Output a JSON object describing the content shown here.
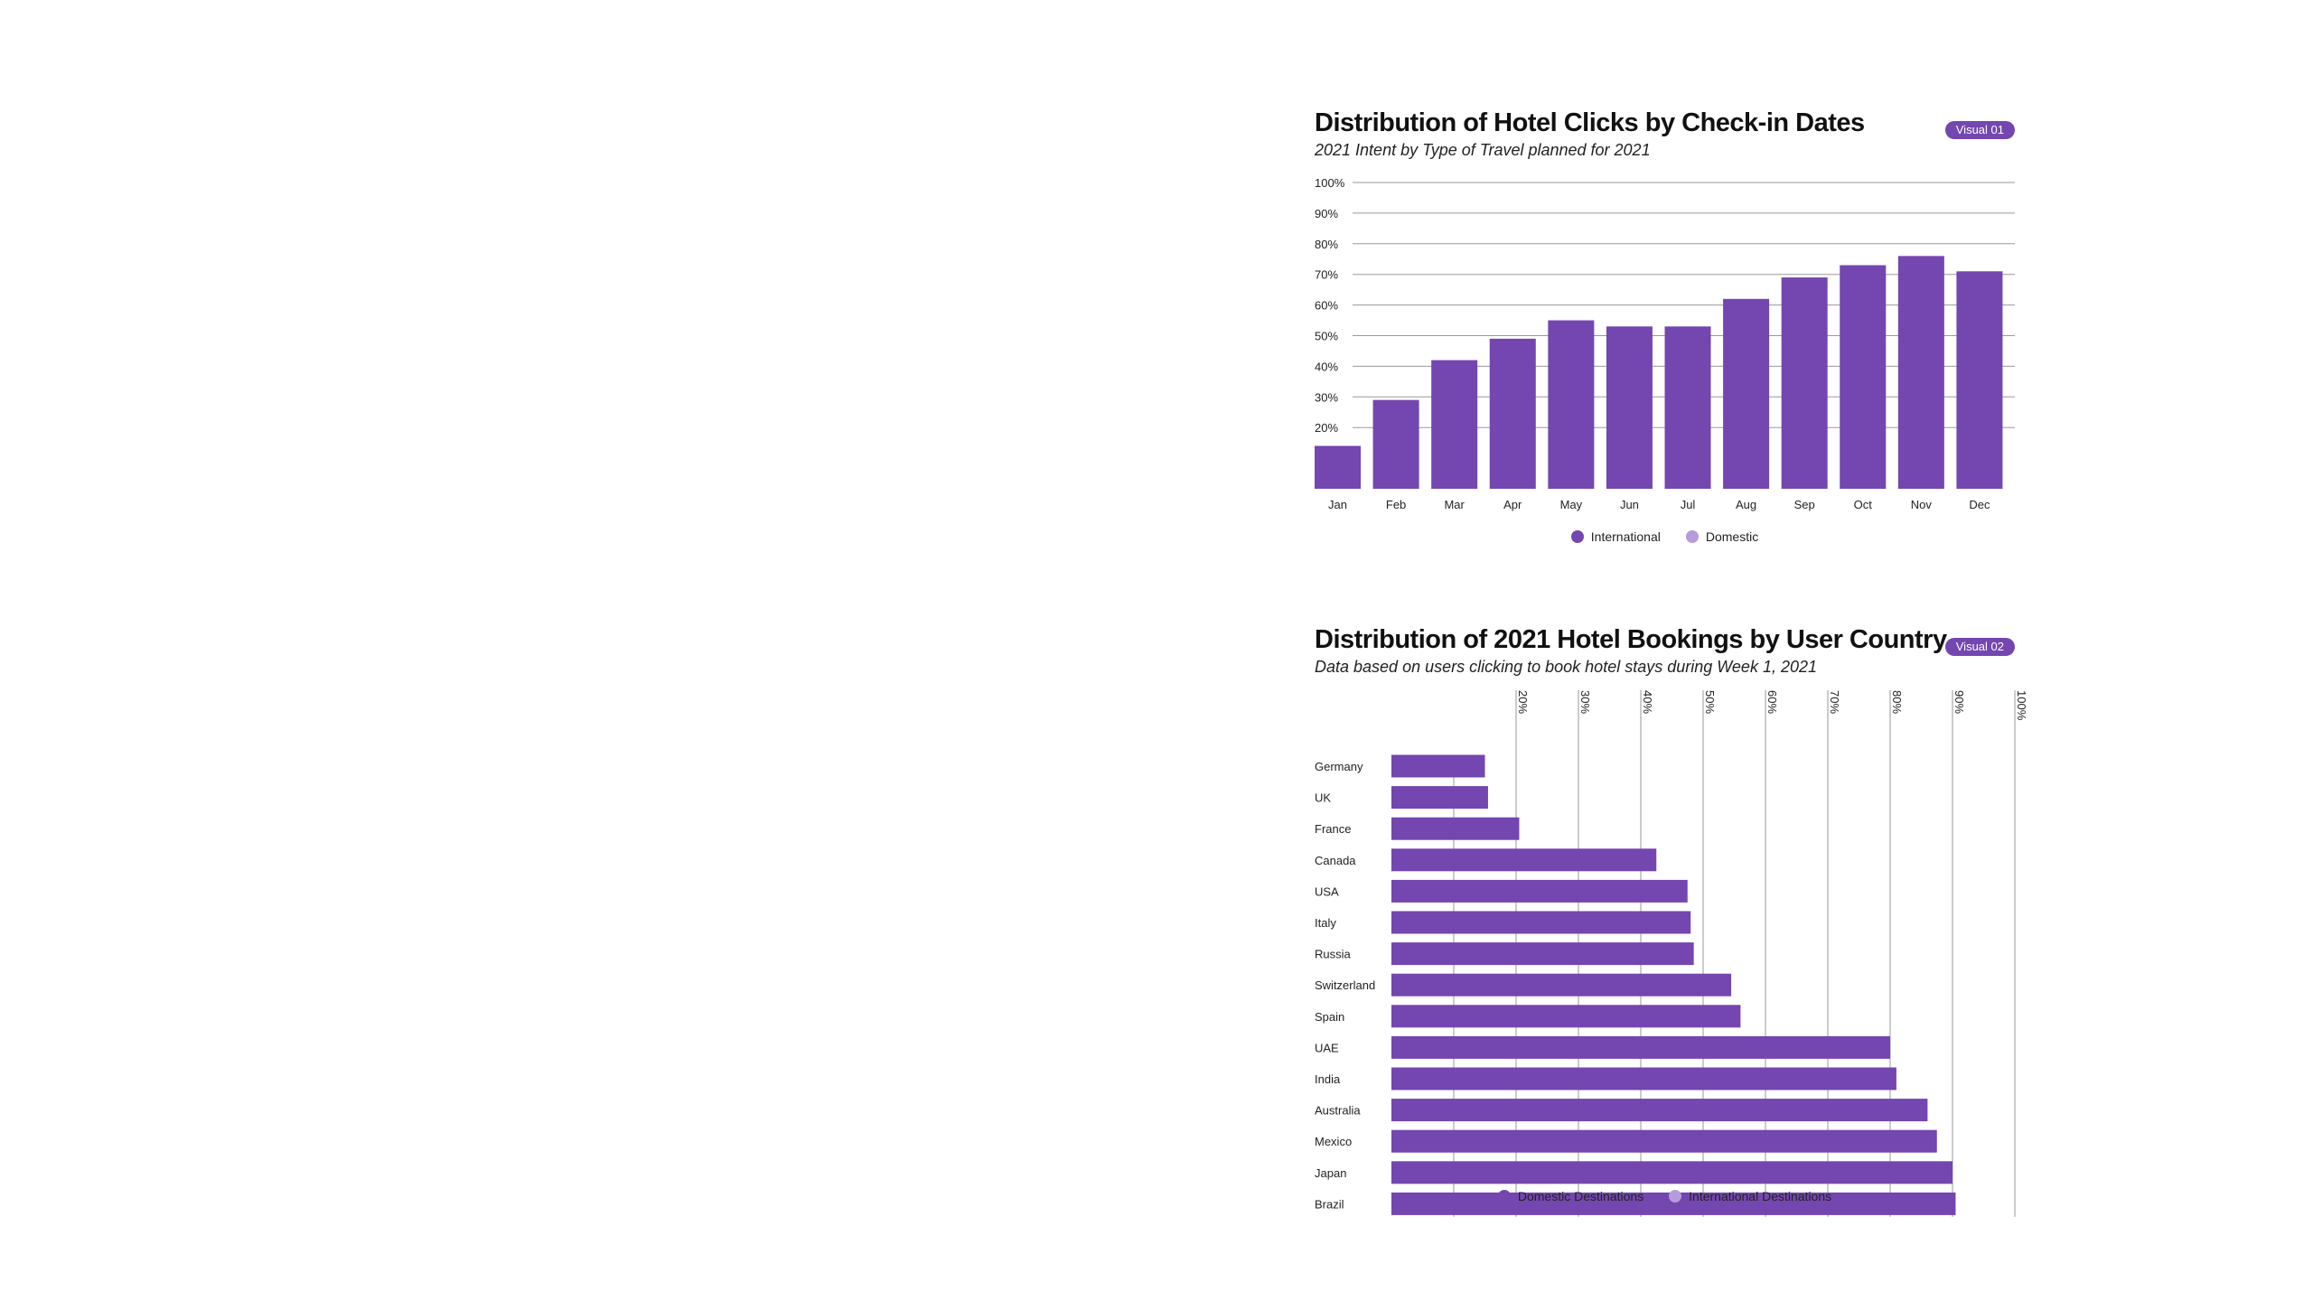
{
  "colors": {
    "primary": "#7446B0",
    "secondary": "#B79CDB",
    "grid": "#9A9A9A",
    "text": "#111111"
  },
  "visual1": {
    "title": "Distribution of Hotel Clicks by Check-in Dates",
    "subtitle": "2021 Intent by Type of Travel planned for 2021",
    "badge": "Visual 01",
    "legend": [
      {
        "label": "International",
        "color": "#7446B0"
      },
      {
        "label": "Domestic",
        "color": "#B79CDB"
      }
    ]
  },
  "visual2": {
    "title": "Distribution of 2021 Hotel Bookings by User Country",
    "subtitle": "Data based on users clicking to book hotel stays during Week 1, 2021",
    "badge": "Visual 02",
    "legend": [
      {
        "label": "Domestic Destinations",
        "color": "#7446B0"
      },
      {
        "label": "International Destinations",
        "color": "#B79CDB"
      }
    ]
  },
  "chart_data": [
    {
      "type": "bar",
      "orientation": "vertical",
      "title": "Distribution of Hotel Clicks by Check-in Dates",
      "subtitle": "2021 Intent by Type of Travel planned for 2021",
      "categories": [
        "Jan",
        "Feb",
        "Mar",
        "Apr",
        "May",
        "Jun",
        "Jul",
        "Aug",
        "Sep",
        "Oct",
        "Nov",
        "Dec"
      ],
      "series": [
        {
          "name": "International",
          "values": [
            14,
            29,
            42,
            49,
            55,
            53,
            53,
            62,
            69,
            73,
            76,
            71
          ]
        }
      ],
      "y_ticks": [
        "100%",
        "90%",
        "80%",
        "70%",
        "60%",
        "50%",
        "40%",
        "30%",
        "20%"
      ],
      "ylim": [
        0,
        100
      ],
      "grid": true,
      "legend_position": "bottom-center"
    },
    {
      "type": "bar",
      "orientation": "horizontal",
      "title": "Distribution of 2021 Hotel Bookings by User Country",
      "subtitle": "Data based on users clicking to book hotel stays during Week 1, 2021",
      "categories": [
        "Germany",
        "UK",
        "France",
        "Canada",
        "USA",
        "Italy",
        "Russia",
        "Switzerland",
        "Spain",
        "UAE",
        "India",
        "Australia",
        "Mexico",
        "Japan",
        "Brazil"
      ],
      "series": [
        {
          "name": "Domestic Destinations",
          "values": [
            15,
            15.5,
            20.5,
            42.5,
            47.5,
            48,
            48.5,
            54.5,
            56,
            80,
            81,
            86,
            87.5,
            90,
            90.5
          ]
        }
      ],
      "x_ticks": [
        "20%",
        "30%",
        "40%",
        "50%",
        "60%",
        "70%",
        "80%",
        "90%",
        "100%"
      ],
      "xlim": [
        0,
        100
      ],
      "grid": true,
      "legend_position": "bottom-center"
    }
  ]
}
